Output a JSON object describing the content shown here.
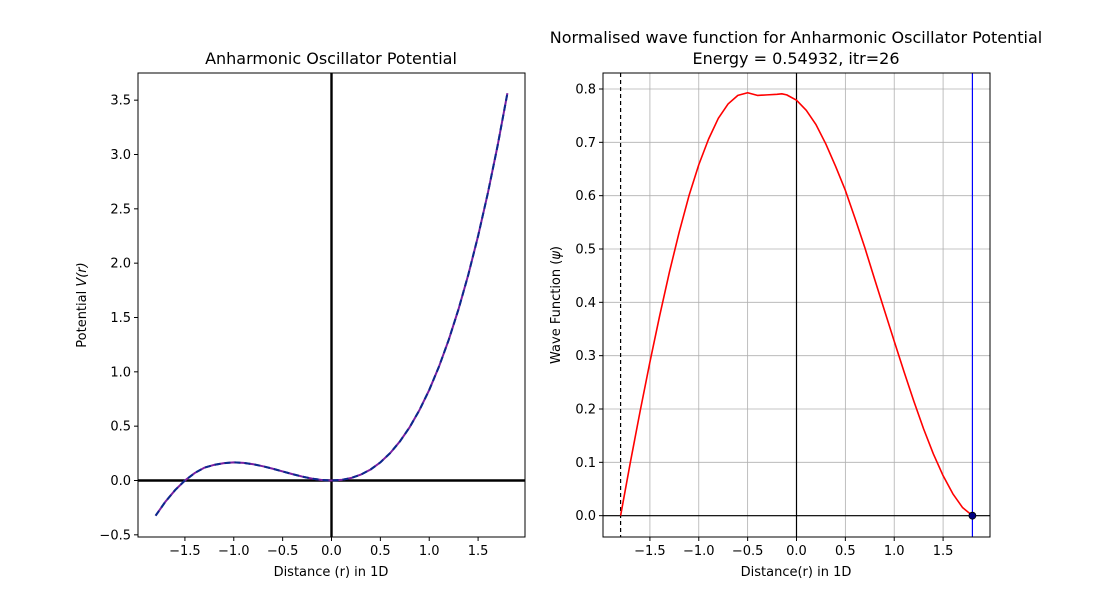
{
  "chart_data": [
    {
      "type": "line",
      "title": "Anharmonic Oscillator Potential",
      "xlabel": "Distance (r) in 1D",
      "ylabel_prefix": "Potential ",
      "ylabel_var": "V(r)",
      "xlim": [
        -1.98,
        1.98
      ],
      "ylim": [
        -0.52,
        3.75
      ],
      "xticks": [
        {
          "v": -1.5,
          "label": "−1.5"
        },
        {
          "v": -1.0,
          "label": "−1.0"
        },
        {
          "v": -0.5,
          "label": "−0.5"
        },
        {
          "v": 0.0,
          "label": "0.0"
        },
        {
          "v": 0.5,
          "label": "0.5"
        },
        {
          "v": 1.0,
          "label": "1.0"
        },
        {
          "v": 1.5,
          "label": "1.5"
        }
      ],
      "yticks": [
        {
          "v": -0.5,
          "label": "−0.5"
        },
        {
          "v": 0.0,
          "label": "0.0"
        },
        {
          "v": 0.5,
          "label": "0.5"
        },
        {
          "v": 1.0,
          "label": "1.0"
        },
        {
          "v": 1.5,
          "label": "1.5"
        },
        {
          "v": 2.0,
          "label": "2.0"
        },
        {
          "v": 2.5,
          "label": "2.5"
        },
        {
          "v": 3.0,
          "label": "3.0"
        },
        {
          "v": 3.5,
          "label": "3.5"
        }
      ],
      "grid": false,
      "series": [
        {
          "color": "#7a1fa2",
          "dash_color": "#0a2a8c",
          "style": "dashed",
          "x": [
            -1.8,
            -1.7,
            -1.6,
            -1.5,
            -1.4,
            -1.3,
            -1.2,
            -1.1,
            -1.0,
            -0.9,
            -0.8,
            -0.7,
            -0.6,
            -0.5,
            -0.4,
            -0.3,
            -0.2,
            -0.1,
            0.0,
            0.1,
            0.2,
            0.3,
            0.4,
            0.5,
            0.6,
            0.7,
            0.8,
            0.9,
            1.0,
            1.1,
            1.2,
            1.3,
            1.4,
            1.5,
            1.6,
            1.7,
            1.8
          ],
          "y": [
            -0.324,
            -0.1955,
            -0.088,
            0.0,
            0.0686,
            0.1185,
            0.144,
            0.1595,
            0.1667,
            0.162,
            0.1493,
            0.1307,
            0.108,
            0.0833,
            0.0587,
            0.036,
            0.0173,
            0.0047,
            0.0,
            0.0053,
            0.0227,
            0.054,
            0.1013,
            0.1667,
            0.252,
            0.3593,
            0.4907,
            0.648,
            0.8333,
            1.0487,
            1.296,
            1.5773,
            1.8947,
            2.25,
            2.6453,
            3.0827,
            3.564
          ]
        }
      ]
    },
    {
      "type": "line",
      "title_line1": "Normalised wave function for Anharmonic Oscillator Potential",
      "title_line2": "Energy =  0.54932, itr=26",
      "xlabel": "Distance(r) in 1D",
      "ylabel_prefix": "Wave Function (",
      "ylabel_var": "ψ",
      "ylabel_suffix": ")",
      "xlim": [
        -1.98,
        1.98
      ],
      "ylim": [
        -0.04,
        0.83
      ],
      "xticks": [
        {
          "v": -1.5,
          "label": "−1.5"
        },
        {
          "v": -1.0,
          "label": "−1.0"
        },
        {
          "v": -0.5,
          "label": "−0.5"
        },
        {
          "v": 0.0,
          "label": "0.0"
        },
        {
          "v": 0.5,
          "label": "0.5"
        },
        {
          "v": 1.0,
          "label": "1.0"
        },
        {
          "v": 1.5,
          "label": "1.5"
        }
      ],
      "yticks": [
        {
          "v": 0.0,
          "label": "0.0"
        },
        {
          "v": 0.1,
          "label": "0.1"
        },
        {
          "v": 0.2,
          "label": "0.2"
        },
        {
          "v": 0.3,
          "label": "0.3"
        },
        {
          "v": 0.4,
          "label": "0.4"
        },
        {
          "v": 0.5,
          "label": "0.5"
        },
        {
          "v": 0.6,
          "label": "0.6"
        },
        {
          "v": 0.7,
          "label": "0.7"
        },
        {
          "v": 0.8,
          "label": "0.8"
        }
      ],
      "grid": true,
      "series": [
        {
          "color": "#ff0000",
          "style": "solid",
          "x": [
            -1.8,
            -1.7,
            -1.6,
            -1.5,
            -1.4,
            -1.3,
            -1.2,
            -1.1,
            -1.0,
            -0.9,
            -0.8,
            -0.7,
            -0.6,
            -0.5,
            -0.4,
            -0.3,
            -0.2,
            -0.15,
            -0.1,
            0.0,
            0.1,
            0.2,
            0.3,
            0.4,
            0.5,
            0.6,
            0.7,
            0.8,
            0.9,
            1.0,
            1.1,
            1.2,
            1.3,
            1.4,
            1.5,
            1.6,
            1.7,
            1.8
          ],
          "y": [
            0.0,
            0.1,
            0.196,
            0.288,
            0.375,
            0.457,
            0.532,
            0.6,
            0.658,
            0.706,
            0.745,
            0.772,
            0.788,
            0.793,
            0.788,
            0.789,
            0.79,
            0.791,
            0.789,
            0.779,
            0.76,
            0.733,
            0.697,
            0.655,
            0.61,
            0.557,
            0.502,
            0.443,
            0.385,
            0.327,
            0.27,
            0.215,
            0.163,
            0.116,
            0.075,
            0.041,
            0.015,
            0.0
          ]
        }
      ],
      "vline_left": {
        "x": -1.8,
        "color": "#000000",
        "style": "dashed"
      },
      "vline_right": {
        "x": 1.8,
        "color": "#0000ff",
        "style": "solid"
      },
      "vline_zero": {
        "x": 0.0,
        "color": "#000000"
      },
      "hline_zero": {
        "y": 0.0,
        "color": "#000000"
      },
      "endpoint": {
        "x": 1.8,
        "y": 0.0,
        "color": "#000080"
      }
    }
  ]
}
